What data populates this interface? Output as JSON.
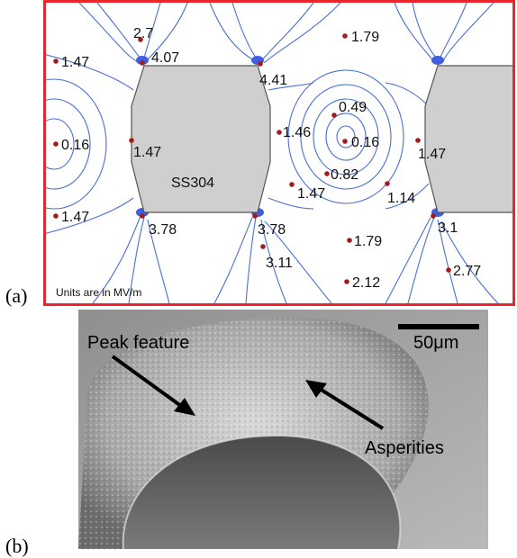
{
  "panel_a": {
    "label": "(a)",
    "plate_label": "SS304",
    "units_note": "Units are in MV/m",
    "field_values": [
      "2.7",
      "4.07",
      "1.79",
      "1.47",
      "4.41",
      "0.49",
      "1.46",
      "0.16",
      "1.47",
      "0.16",
      "1.47",
      "0.82",
      "1.47",
      "1.14",
      "1.47",
      "3.78",
      "3.78",
      "3.1",
      "1.79",
      "3.11",
      "2.77",
      "2.12"
    ]
  },
  "panel_b": {
    "label": "(b)",
    "annotations": [
      "Peak feature",
      "Asperities"
    ],
    "scale_bar": "50μm"
  },
  "colors": {
    "frame": "#e8262b",
    "contour": "#4a6fd4",
    "plate": "#cfcfcf",
    "marker": "#a31a1a"
  }
}
